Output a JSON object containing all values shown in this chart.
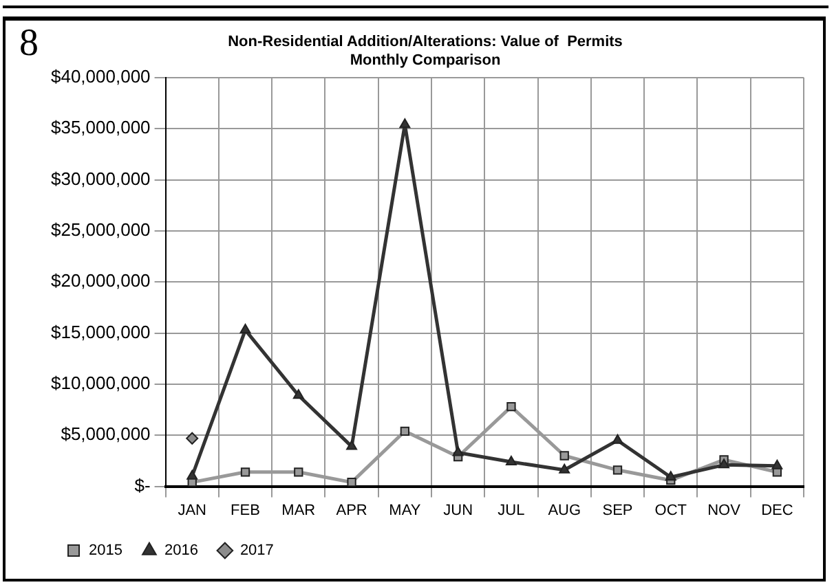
{
  "chart_data": {
    "type": "line",
    "title": [
      "Non-Residential Addition/Alterations: Value of  Permits",
      "Monthly Comparison"
    ],
    "annotations": [
      "8"
    ],
    "categories": [
      "JAN",
      "FEB",
      "MAR",
      "APR",
      "MAY",
      "JUN",
      "JUL",
      "AUG",
      "SEP",
      "OCT",
      "NOV",
      "DEC"
    ],
    "series": [
      {
        "name": "2015",
        "color": "#999999",
        "marker": "square",
        "values": [
          400000,
          1400000,
          1400000,
          400000,
          5400000,
          2900000,
          7800000,
          3000000,
          1600000,
          600000,
          2600000,
          1400000
        ]
      },
      {
        "name": "2016",
        "color": "#333333",
        "marker": "triangle",
        "values": [
          1000000,
          15300000,
          8900000,
          3900000,
          35400000,
          3300000,
          2400000,
          1600000,
          4500000,
          900000,
          2100000,
          2000000
        ]
      },
      {
        "name": "2017",
        "color": "#8c8c8c",
        "marker": "diamond",
        "values": [
          4700000,
          null,
          null,
          null,
          null,
          null,
          null,
          null,
          null,
          null,
          null,
          null
        ]
      }
    ],
    "ylim": [
      0,
      40000000
    ],
    "yticks": [
      {
        "value": 0,
        "label": "$-"
      },
      {
        "value": 5000000,
        "label": "$5,000,000"
      },
      {
        "value": 10000000,
        "label": "$10,000,000"
      },
      {
        "value": 15000000,
        "label": "$15,000,000"
      },
      {
        "value": 20000000,
        "label": "$20,000,000"
      },
      {
        "value": 25000000,
        "label": "$25,000,000"
      },
      {
        "value": 30000000,
        "label": "$30,000,000"
      },
      {
        "value": 35000000,
        "label": "$35,000,000"
      },
      {
        "value": 40000000,
        "label": "$40,000,000"
      }
    ],
    "grid": true,
    "legend": "bottom",
    "line_style": "solid"
  }
}
